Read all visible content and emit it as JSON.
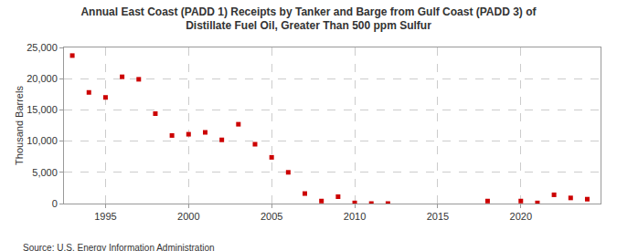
{
  "chart_data": {
    "type": "scatter",
    "title": "Annual East Coast (PADD 1) Receipts by Tanker and Barge from Gulf Coast (PADD 3) of\nDistillate Fuel Oil, Greater Than 500 ppm Sulfur",
    "y_label": "Thousand Barrels",
    "source": "Source: U.S. Energy Information Administration",
    "x": [
      1993,
      1994,
      1995,
      1996,
      1997,
      1998,
      1999,
      2000,
      2001,
      2002,
      2003,
      2004,
      2005,
      2006,
      2007,
      2008,
      2009,
      2010,
      2011,
      2012,
      2018,
      2020,
      2021,
      2022,
      2023,
      2024
    ],
    "values": [
      23700,
      17800,
      17000,
      20300,
      19900,
      14400,
      10900,
      11100,
      11400,
      10200,
      12700,
      9500,
      7400,
      5000,
      1600,
      400,
      1100,
      100,
      0,
      0,
      400,
      400,
      100,
      1400,
      900,
      700
    ],
    "color": "#cc0000",
    "marker": "square",
    "xlim": [
      1992.5,
      2024.8
    ],
    "xticks": [
      1995,
      2000,
      2005,
      2010,
      2015,
      2020
    ],
    "ylim": [
      0,
      25000
    ],
    "yticks": [
      0,
      {
        "value": 5000,
        "label": "5,000"
      },
      {
        "value": 10000,
        "label": "10,000"
      },
      {
        "value": 15000,
        "label": "15,000"
      },
      {
        "value": 20000,
        "label": "20,000"
      },
      {
        "value": 25000,
        "label": "25,000"
      }
    ],
    "grid": true
  }
}
